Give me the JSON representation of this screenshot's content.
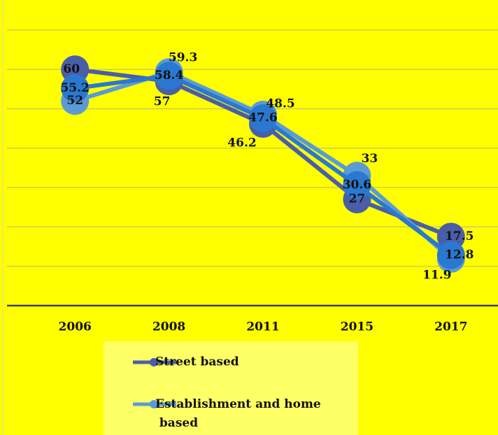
{
  "chart_data": {
    "type": "line",
    "categories": [
      "2006",
      "2008",
      "2011",
      "2015",
      "2017"
    ],
    "series": [
      {
        "name": "Street based",
        "color": "#4a5ea8",
        "values": [
          60,
          57,
          46.2,
          27,
          17.5
        ]
      },
      {
        "name": "Establishment and home based",
        "color": "#5b9bd5",
        "values": [
          52,
          59.3,
          48.5,
          33,
          11.9
        ]
      },
      {
        "color": "#2a78d0",
        "values": [
          55.2,
          58.4,
          47.6,
          30.6,
          12.8
        ]
      }
    ],
    "ylim": [
      0,
      70
    ],
    "yticks": [
      0,
      10,
      20,
      30,
      40,
      50,
      60,
      70
    ],
    "grid": true,
    "legend": "bottom"
  }
}
